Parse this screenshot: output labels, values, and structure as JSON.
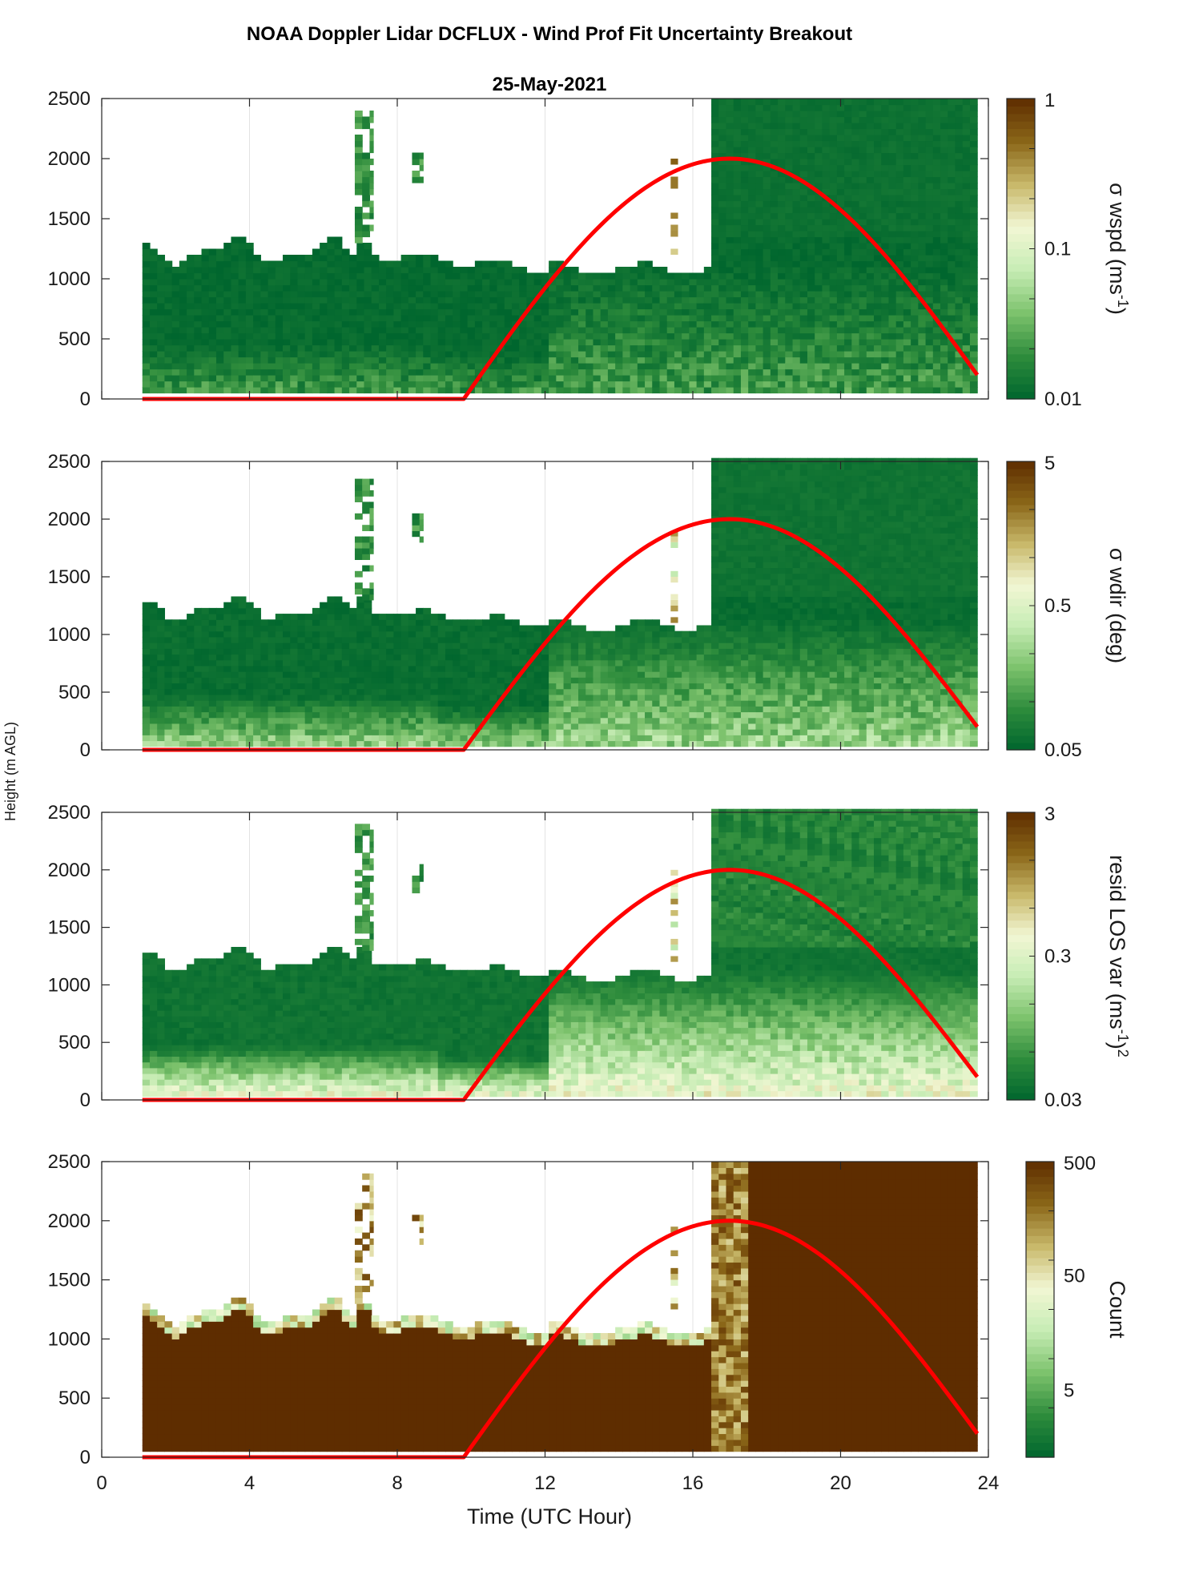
{
  "figure": {
    "title": "NOAA Doppler Lidar DCFLUX - Wind Prof Fit Uncertainty Breakout",
    "subtitle": "25-May-2021",
    "shared_ylabel": "Height (m AGL)",
    "xlabel": "Time (UTC Hour)"
  },
  "colors": {
    "sun_curve": "#ff0000",
    "colormap": [
      "#00662e",
      "#2e8c3c",
      "#7cc26c",
      "#c6ecb4",
      "#f2f7d4",
      "#c8b86a",
      "#8a6618",
      "#5e2d00"
    ]
  },
  "chart_data": [
    {
      "type": "heatmap",
      "name": "wspd",
      "ylabel": "Height (m AGL)",
      "x_ticks": [
        0,
        4,
        8,
        12,
        16,
        20,
        24
      ],
      "y_ticks": [
        0,
        500,
        1000,
        1500,
        2000,
        2500
      ],
      "xlim": [
        0,
        24
      ],
      "ylim": [
        0,
        2500
      ],
      "grid": "vertical",
      "colorbar": {
        "label": "σ wspd (ms-1)",
        "label_main": "σ wspd (ms",
        "label_sup": "-1",
        "label_end": ")",
        "scale": "log",
        "range": [
          0.01,
          1
        ],
        "ticks": [
          "1",
          "0.1",
          "0.01"
        ],
        "tick_values": [
          1,
          0.1,
          0.01
        ]
      },
      "field": {
        "data_start_hour": 1.1,
        "data_end_hour": 23.7,
        "bottom_gap_m": 50,
        "typical_log_value_fraction": {
          "above_boundary_layer": 0.02,
          "near_surface": 0.18
        },
        "wide_block": {
          "start_hour": 16.4,
          "top_m": 2500
        }
      },
      "sun_curve": {
        "series": "solar elevation (scaled)",
        "zero_until_hour": 9.8,
        "peak_hour": 17.0,
        "peak_height_m": 2000,
        "end_hour": 23.7,
        "end_height_m": 200
      }
    },
    {
      "type": "heatmap",
      "name": "wdir",
      "x_ticks": [
        0,
        4,
        8,
        12,
        16,
        20,
        24
      ],
      "y_ticks": [
        0,
        500,
        1000,
        1500,
        2000,
        2500
      ],
      "xlim": [
        0,
        24
      ],
      "ylim": [
        0,
        2500
      ],
      "grid": "vertical",
      "colorbar": {
        "label": "σ wdir (deg)",
        "label_main": "σ wdir (deg)",
        "scale": "log",
        "range": [
          0.05,
          5
        ],
        "ticks": [
          "5",
          "0.5",
          "0.05"
        ],
        "tick_values": [
          5,
          0.5,
          0.05
        ]
      },
      "field": {
        "data_start_hour": 1.1,
        "data_end_hour": 23.7,
        "bottom_gap_m": 30,
        "typical_log_value_fraction": {
          "above_boundary_layer": 0.03,
          "near_surface": 0.35
        },
        "wide_block": {
          "start_hour": 16.4,
          "top_m": 2500
        }
      },
      "sun_curve": {
        "series": "solar elevation (scaled)",
        "zero_until_hour": 9.8,
        "peak_hour": 17.0,
        "peak_height_m": 2000,
        "end_hour": 23.7,
        "end_height_m": 200
      }
    },
    {
      "type": "heatmap",
      "name": "resid",
      "x_ticks": [
        0,
        4,
        8,
        12,
        16,
        20,
        24
      ],
      "y_ticks": [
        0,
        500,
        1000,
        1500,
        2000,
        2500
      ],
      "xlim": [
        0,
        24
      ],
      "ylim": [
        0,
        2500
      ],
      "grid": "vertical",
      "colorbar": {
        "label": "resid LOS var (ms-1)2",
        "label_main": "resid LOS var (ms",
        "label_sup": "-1",
        "label_end": ")",
        "label_sup2": "2",
        "scale": "log",
        "range": [
          0.03,
          3
        ],
        "ticks": [
          "3",
          "0.3",
          "0.03"
        ],
        "tick_values": [
          3,
          0.3,
          0.03
        ]
      },
      "field": {
        "data_start_hour": 1.1,
        "data_end_hour": 23.7,
        "bottom_gap_m": 30,
        "typical_log_value_fraction": {
          "above_boundary_layer": 0.05,
          "near_surface": 0.55
        },
        "wide_block": {
          "start_hour": 16.4,
          "top_m": 2500
        }
      },
      "sun_curve": {
        "series": "solar elevation (scaled)",
        "zero_until_hour": 9.8,
        "peak_hour": 17.0,
        "peak_height_m": 2000,
        "end_hour": 23.7,
        "end_height_m": 200
      }
    },
    {
      "type": "heatmap",
      "name": "count",
      "xlabel": "Time (UTC Hour)",
      "x_ticks": [
        0,
        4,
        8,
        12,
        16,
        20,
        24
      ],
      "y_ticks": [
        0,
        500,
        1000,
        1500,
        2000,
        2500
      ],
      "xlim": [
        0,
        24
      ],
      "ylim": [
        0,
        2500
      ],
      "grid": "vertical",
      "colorbar": {
        "label": "Count",
        "label_main": "Count",
        "scale": "log",
        "range": [
          1.3,
          500
        ],
        "ticks": [
          "500",
          "50",
          "5"
        ],
        "tick_values": [
          500,
          50,
          5
        ]
      },
      "field": {
        "data_start_hour": 1.1,
        "data_end_hour": 23.7,
        "bottom_gap_m": 50,
        "typical_log_value_fraction": {
          "above_boundary_layer": 1.0,
          "near_surface": 1.0
        },
        "wide_block": {
          "start_hour": 16.4,
          "top_m": 2500
        }
      },
      "sun_curve": {
        "series": "solar elevation (scaled)",
        "zero_until_hour": 9.8,
        "peak_hour": 17.0,
        "peak_height_m": 2000,
        "end_hour": 23.7,
        "end_height_m": 200
      }
    }
  ]
}
